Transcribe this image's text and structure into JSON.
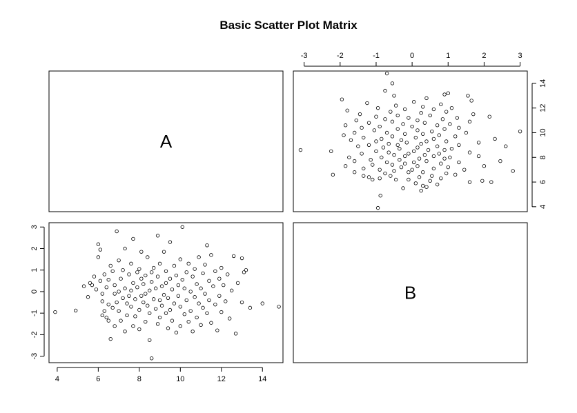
{
  "chart_data": {
    "type": "scatter",
    "title": "Basic Scatter Plot Matrix",
    "variables": [
      "A",
      "B"
    ],
    "axes": {
      "A": {
        "range": [
          3.6,
          15.0
        ],
        "ticks": [
          4,
          6,
          8,
          10,
          12,
          14
        ]
      },
      "B": {
        "range": [
          -3.3,
          3.2
        ],
        "ticks": [
          -3,
          -2,
          -1,
          0,
          1,
          2,
          3
        ]
      }
    },
    "grid": false,
    "series": [
      {
        "points": [
          [
            3.9,
            -0.95
          ],
          [
            4.9,
            -0.88
          ],
          [
            5.3,
            0.25
          ],
          [
            5.5,
            -0.25
          ],
          [
            5.6,
            0.4
          ],
          [
            5.7,
            0.3
          ],
          [
            5.8,
            0.7
          ],
          [
            5.9,
            0.1
          ],
          [
            6.0,
            1.6
          ],
          [
            6.0,
            2.2
          ],
          [
            6.1,
            1.95
          ],
          [
            6.1,
            0.5
          ],
          [
            6.2,
            -0.1
          ],
          [
            6.2,
            -0.45
          ],
          [
            6.2,
            -1.1
          ],
          [
            6.3,
            -0.9
          ],
          [
            6.3,
            0.8
          ],
          [
            6.4,
            -1.2
          ],
          [
            6.4,
            0.2
          ],
          [
            6.5,
            -1.35
          ],
          [
            6.5,
            -0.6
          ],
          [
            6.5,
            0.55
          ],
          [
            6.6,
            1.2
          ],
          [
            6.6,
            -2.2
          ],
          [
            6.7,
            -0.75
          ],
          [
            6.7,
            0.95
          ],
          [
            6.8,
            -1.6
          ],
          [
            6.8,
            0.3
          ],
          [
            6.8,
            -0.1
          ],
          [
            6.9,
            2.8
          ],
          [
            6.9,
            -0.5
          ],
          [
            7.0,
            1.45
          ],
          [
            7.0,
            -0.9
          ],
          [
            7.0,
            0.0
          ],
          [
            7.1,
            -1.35
          ],
          [
            7.1,
            0.6
          ],
          [
            7.2,
            -0.3
          ],
          [
            7.2,
            1.0
          ],
          [
            7.3,
            -1.85
          ],
          [
            7.3,
            2.0
          ],
          [
            7.3,
            0.15
          ],
          [
            7.4,
            -0.55
          ],
          [
            7.4,
            -1.1
          ],
          [
            7.5,
            0.8
          ],
          [
            7.5,
            -0.2
          ],
          [
            7.6,
            1.3
          ],
          [
            7.6,
            0.05
          ],
          [
            7.6,
            -0.7
          ],
          [
            7.7,
            2.45
          ],
          [
            7.7,
            -1.6
          ],
          [
            7.7,
            0.4
          ],
          [
            7.8,
            -0.35
          ],
          [
            7.8,
            -1.15
          ],
          [
            7.9,
            0.9
          ],
          [
            7.9,
            0.2
          ],
          [
            8.0,
            1.05
          ],
          [
            8.0,
            -0.85
          ],
          [
            8.0,
            -1.75
          ],
          [
            8.1,
            0.6
          ],
          [
            8.1,
            -0.2
          ],
          [
            8.1,
            1.85
          ],
          [
            8.2,
            -0.5
          ],
          [
            8.2,
            0.35
          ],
          [
            8.3,
            -1.4
          ],
          [
            8.3,
            0.75
          ],
          [
            8.3,
            -0.1
          ],
          [
            8.4,
            1.6
          ],
          [
            8.4,
            -0.65
          ],
          [
            8.5,
            0.05
          ],
          [
            8.5,
            -2.25
          ],
          [
            8.5,
            -1.0
          ],
          [
            8.6,
            0.9
          ],
          [
            8.6,
            -3.1
          ],
          [
            8.6,
            0.45
          ],
          [
            8.7,
            -0.35
          ],
          [
            8.7,
            1.1
          ],
          [
            8.8,
            -0.8
          ],
          [
            8.8,
            0.15
          ],
          [
            8.9,
            2.6
          ],
          [
            8.9,
            -1.5
          ],
          [
            8.9,
            0.7
          ],
          [
            9.0,
            -0.4
          ],
          [
            9.0,
            1.3
          ],
          [
            9.0,
            -1.2
          ],
          [
            9.1,
            0.25
          ],
          [
            9.1,
            -0.65
          ],
          [
            9.2,
            1.85
          ],
          [
            9.2,
            -0.15
          ],
          [
            9.3,
            0.95
          ],
          [
            9.3,
            -1.0
          ],
          [
            9.3,
            0.4
          ],
          [
            9.4,
            -1.7
          ],
          [
            9.4,
            -0.3
          ],
          [
            9.5,
            2.3
          ],
          [
            9.5,
            0.6
          ],
          [
            9.5,
            -0.85
          ],
          [
            9.6,
            -1.35
          ],
          [
            9.6,
            0.1
          ],
          [
            9.7,
            1.2
          ],
          [
            9.7,
            -0.55
          ],
          [
            9.8,
            0.75
          ],
          [
            9.8,
            -1.9
          ],
          [
            9.9,
            0.3
          ],
          [
            9.9,
            -0.2
          ],
          [
            10.0,
            1.5
          ],
          [
            10.0,
            -1.6
          ],
          [
            10.0,
            -0.7
          ],
          [
            10.1,
            0.55
          ],
          [
            10.1,
            3.0
          ],
          [
            10.2,
            -1.05
          ],
          [
            10.2,
            0.15
          ],
          [
            10.3,
            0.9
          ],
          [
            10.3,
            -0.4
          ],
          [
            10.4,
            -1.4
          ],
          [
            10.4,
            1.3
          ],
          [
            10.5,
            0.0
          ],
          [
            10.5,
            -0.9
          ],
          [
            10.6,
            0.7
          ],
          [
            10.6,
            -1.85
          ],
          [
            10.7,
            -0.25
          ],
          [
            10.7,
            1.05
          ],
          [
            10.8,
            0.35
          ],
          [
            10.8,
            -1.2
          ],
          [
            10.9,
            -0.55
          ],
          [
            10.9,
            1.6
          ],
          [
            11.0,
            0.15
          ],
          [
            11.0,
            -1.55
          ],
          [
            11.1,
            0.85
          ],
          [
            11.1,
            -0.75
          ],
          [
            11.2,
            1.25
          ],
          [
            11.2,
            -0.1
          ],
          [
            11.3,
            2.15
          ],
          [
            11.3,
            -1.0
          ],
          [
            11.4,
            0.5
          ],
          [
            11.4,
            -0.4
          ],
          [
            11.5,
            1.7
          ],
          [
            11.5,
            -1.45
          ],
          [
            11.6,
            0.25
          ],
          [
            11.7,
            -0.6
          ],
          [
            11.7,
            0.95
          ],
          [
            11.8,
            -1.8
          ],
          [
            11.9,
            0.6
          ],
          [
            11.9,
            -0.2
          ],
          [
            12.0,
            1.1
          ],
          [
            12.0,
            -0.95
          ],
          [
            12.1,
            0.3
          ],
          [
            12.2,
            -0.45
          ],
          [
            12.3,
            0.8
          ],
          [
            12.4,
            -1.25
          ],
          [
            12.5,
            0.05
          ],
          [
            12.6,
            1.65
          ],
          [
            12.7,
            -1.95
          ],
          [
            12.8,
            0.4
          ],
          [
            13.0,
            1.55
          ],
          [
            13.0,
            -0.5
          ],
          [
            13.1,
            0.9
          ],
          [
            13.2,
            1.0
          ],
          [
            13.4,
            -0.75
          ],
          [
            14.0,
            -0.55
          ],
          [
            14.8,
            -0.7
          ]
        ]
      }
    ]
  }
}
